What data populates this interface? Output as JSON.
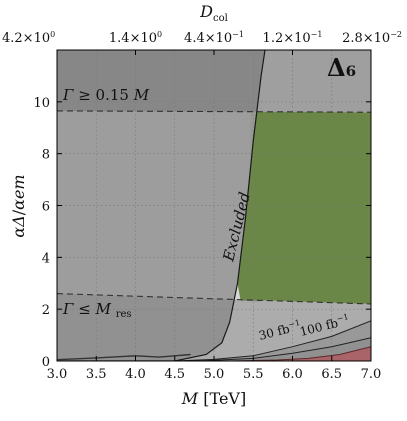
{
  "chart_data": {
    "type": "area",
    "badge": "Δ₆",
    "xlabel_main": "M",
    "xlabel_unit": "[TeV]",
    "ylabel_main": "αΔ",
    "ylabel_sep": "/",
    "ylabel_den": "αem",
    "top_axis_label_main": "D",
    "top_axis_label_sub": "col",
    "xlim": [
      3.0,
      7.0
    ],
    "ylim": [
      0,
      12
    ],
    "x_ticks": [
      "3.0",
      "3.5",
      "4.0",
      "4.5",
      "5.0",
      "5.5",
      "6.0",
      "6.5",
      "7.0"
    ],
    "y_ticks": [
      "0",
      "2",
      "4",
      "6",
      "8",
      "10"
    ],
    "top_ticks": [
      {
        "x": 3.0,
        "mant": "4.2×10",
        "exp": "0"
      },
      {
        "x": 4.0,
        "mant": "1.4×10",
        "exp": "0"
      },
      {
        "x": 5.0,
        "mant": "4.4×10",
        "exp": "−1"
      },
      {
        "x": 6.0,
        "mant": "1.2×10",
        "exp": "−1"
      },
      {
        "x": 7.0,
        "mant": "2.8×10",
        "exp": "−2"
      }
    ],
    "grid": true,
    "width_upper": {
      "label_lhs": "Γ",
      "label_rel": "≥ 0.15",
      "label_rhs": "M",
      "points": [
        [
          3.0,
          9.65
        ],
        [
          7.0,
          9.6
        ]
      ]
    },
    "width_lower": {
      "label_lhs": "Γ",
      "label_rel": "≤",
      "label_rhs": "M",
      "label_rhs_sub": "res",
      "points": [
        [
          3.0,
          2.6
        ],
        [
          5.0,
          2.4
        ],
        [
          7.0,
          2.2
        ]
      ]
    },
    "excluded": {
      "label": "Excluded",
      "boundary": [
        [
          3.0,
          0.0
        ],
        [
          4.5,
          0.0
        ],
        [
          4.9,
          0.25
        ],
        [
          5.1,
          0.7
        ],
        [
          5.2,
          1.5
        ],
        [
          5.3,
          3.0
        ],
        [
          5.4,
          5.5
        ],
        [
          5.5,
          8.5
        ],
        [
          5.6,
          11.0
        ],
        [
          5.65,
          12.0
        ]
      ]
    },
    "discovery_curves": [
      {
        "label_num": "30 fb",
        "label_exp": "−1",
        "points": [
          [
            4.5,
            0.0
          ],
          [
            5.0,
            0.06
          ],
          [
            5.5,
            0.2
          ],
          [
            6.0,
            0.55
          ],
          [
            6.5,
            0.95
          ],
          [
            7.0,
            1.55
          ]
        ]
      },
      {
        "label_num": "100 fb",
        "label_exp": "−1",
        "points": [
          [
            4.8,
            0.0
          ],
          [
            5.5,
            0.1
          ],
          [
            6.0,
            0.3
          ],
          [
            6.5,
            0.55
          ],
          [
            7.0,
            0.9
          ]
        ]
      }
    ],
    "red_region": {
      "points": [
        [
          5.2,
          0.0
        ],
        [
          5.8,
          0.04
        ],
        [
          6.2,
          0.1
        ],
        [
          6.6,
          0.25
        ],
        [
          7.0,
          0.55
        ]
      ]
    },
    "noise_band": {
      "points": [
        [
          3.0,
          0.05
        ],
        [
          3.5,
          0.12
        ],
        [
          4.0,
          0.2
        ],
        [
          4.3,
          0.15
        ],
        [
          4.5,
          0.2
        ],
        [
          4.7,
          0.25
        ]
      ]
    },
    "colors": {
      "excluded": "#9a9a9a",
      "allowed_light": "#d6d6d6",
      "green": "#6b8748",
      "red": "#a86468",
      "discovery_fill": "#8a8a8a",
      "dashed": "#333333"
    }
  }
}
